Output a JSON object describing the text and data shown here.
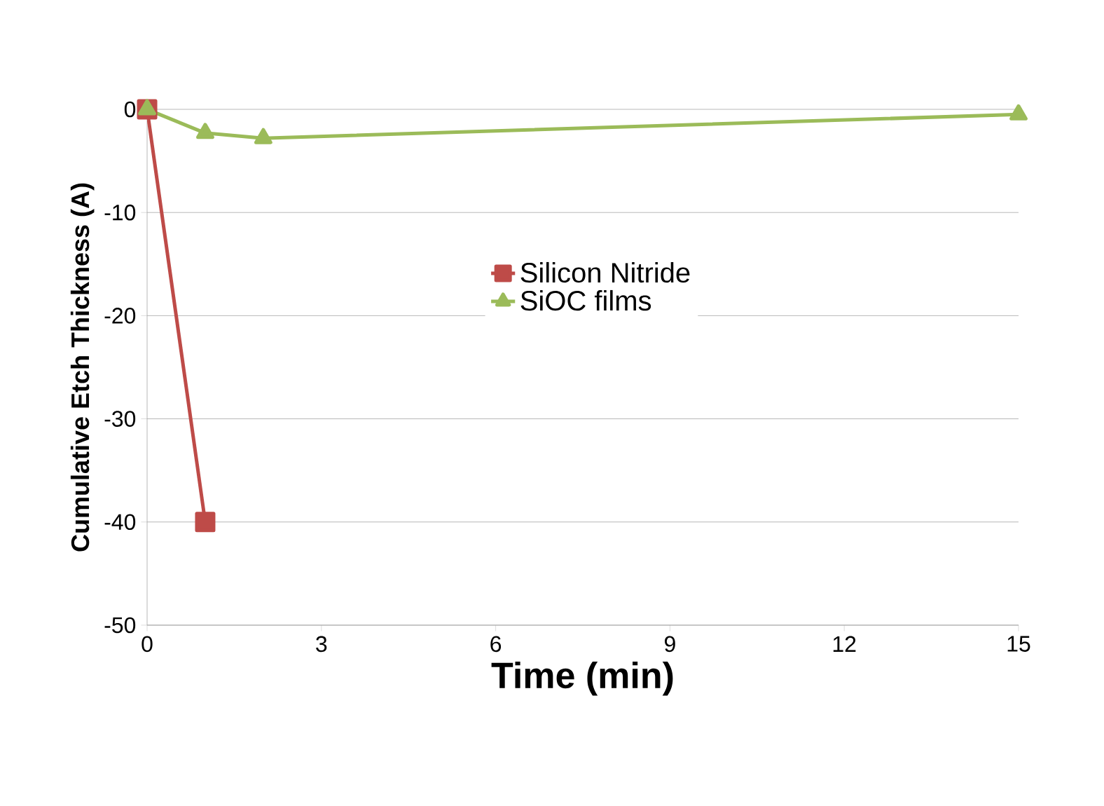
{
  "chart_data": {
    "type": "line",
    "xlabel": "Time (min)",
    "ylabel": "Cumulative Etch Thickness (A)",
    "x": [
      0,
      1,
      2,
      15
    ],
    "series": [
      {
        "name": "Silicon Nitride",
        "color": "#be4b48",
        "marker": "square",
        "values": [
          0,
          -40,
          null,
          null
        ]
      },
      {
        "name": "SiOC films",
        "color": "#9bbb59",
        "marker": "triangle",
        "values": [
          0,
          -2.3,
          -2.8,
          -0.5
        ]
      }
    ],
    "xlim": [
      0,
      15
    ],
    "xticks": [
      0,
      3,
      6,
      9,
      12,
      15
    ],
    "ylim": [
      -50,
      0
    ],
    "yticks": [
      -50,
      -40,
      -30,
      -20,
      -10,
      0
    ],
    "grid": "y",
    "legend": "top"
  }
}
